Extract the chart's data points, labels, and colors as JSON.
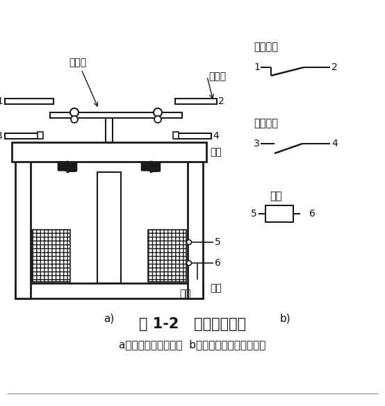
{
  "title": "图 1-2   继电器示意图",
  "subtitle": "a）继电器结构示意图  b）继电器组成的电路符号",
  "label_a": "a)",
  "label_b": "b)",
  "bg_color": "#ffffff",
  "line_color": "#1a1a1a",
  "text_color": "#111111",
  "labels": {
    "dong_chu_dian": "动触点",
    "jing_chu_dian": "静触点",
    "heng_tie": "衔铁",
    "tie_xin": "铁心",
    "xian_quan": "线圈",
    "chang_bi_chu_dian": "常闭触点",
    "chang_kai_chu_dian": "常开触点",
    "xian_quan_b": "线圈"
  }
}
